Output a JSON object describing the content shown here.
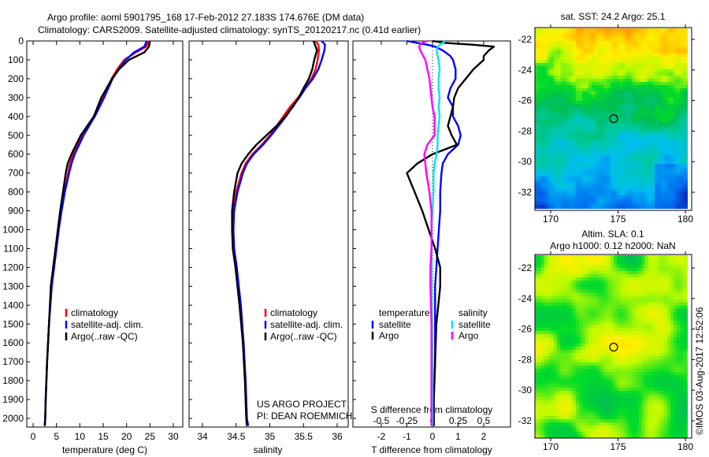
{
  "header": {
    "title_line1": "Argo profile: aoml 5901795_168 17-Feb-2012 27.183S 174.676E (DM data)",
    "title_line2": "Climatology: CARS2009. Satellite-adjusted climatology: synTS_20120217.nc (0.41d earlier)"
  },
  "credits": {
    "project": "US ARGO PROJECT",
    "pi": "PI: DEAN ROEMMICH",
    "copyright": "©IMOS 03-Aug-2017 12:52:06"
  },
  "colors": {
    "climatology": "#ff0000",
    "satellite": "#0000ff",
    "argo": "#000000",
    "salinity_satellite": "#00e5ee",
    "salinity_argo": "#ff00ff"
  },
  "chart_data": [
    {
      "type": "line",
      "title": "",
      "xlabel": "temperature (deg C)",
      "ylabel": "",
      "xlim": [
        -1.35,
        32
      ],
      "ylim": [
        2045,
        0
      ],
      "xticks": [
        "0",
        "5",
        "10",
        "15",
        "20",
        "25",
        "30"
      ],
      "yticks": [
        "0",
        "100",
        "200",
        "300",
        "400",
        "500",
        "600",
        "700",
        "800",
        "900",
        "1000",
        "1100",
        "1200",
        "1300",
        "1400",
        "1500",
        "1600",
        "1700",
        "1800",
        "1900",
        "2000"
      ],
      "legend": [
        "climatology",
        "satellite-adj. clim.",
        "Argo(..raw -QC)"
      ],
      "depth": [
        0,
        30,
        60,
        100,
        150,
        200,
        300,
        400,
        500,
        600,
        650,
        700,
        800,
        900,
        1000,
        1100,
        1200,
        1300,
        1400,
        1500,
        1700,
        1900,
        2000,
        2040
      ],
      "series": [
        {
          "name": "climatology",
          "values": [
            24.8,
            24.2,
            22.0,
            19.5,
            18.0,
            16.8,
            15.0,
            13.0,
            10.5,
            8.6,
            7.9,
            7.5,
            6.7,
            6.0,
            5.4,
            4.9,
            4.4,
            3.9,
            3.6,
            3.4,
            3.0,
            2.7,
            2.6,
            2.5
          ]
        },
        {
          "name": "satellite-adj. clim.",
          "values": [
            24.3,
            23.8,
            21.6,
            19.8,
            18.3,
            17.0,
            15.2,
            13.2,
            10.8,
            8.9,
            8.2,
            7.7,
            6.8,
            6.1,
            5.5,
            5.0,
            4.5,
            4.0,
            3.7,
            3.4,
            3.0,
            2.7,
            2.6,
            2.5
          ]
        },
        {
          "name": "Argo(..raw -QC)",
          "values": [
            25.0,
            24.8,
            23.8,
            20.5,
            18.4,
            16.9,
            14.6,
            13.0,
            10.2,
            8.2,
            7.4,
            7.0,
            6.4,
            5.8,
            5.3,
            4.8,
            4.3,
            3.8,
            3.6,
            3.4,
            3.0,
            2.7,
            2.6,
            2.5
          ]
        }
      ]
    },
    {
      "type": "line",
      "xlabel": "salinity",
      "xlim": [
        33.8,
        36.16
      ],
      "ylim": [
        2045,
        0
      ],
      "xticks": [
        "34",
        "34.5",
        "35",
        "35.5",
        "36"
      ],
      "legend": [
        "climatology",
        "satellite-adj. clim.",
        "Argo(..raw -QC)"
      ],
      "depth": [
        0,
        20,
        50,
        100,
        150,
        200,
        250,
        300,
        350,
        400,
        450,
        500,
        550,
        600,
        650,
        700,
        800,
        900,
        1000,
        1100,
        1200,
        1400,
        1600,
        1800,
        2000,
        2040
      ],
      "series": [
        {
          "name": "climatology",
          "values": [
            35.68,
            35.72,
            35.73,
            35.71,
            35.68,
            35.62,
            35.52,
            35.42,
            35.3,
            35.2,
            35.1,
            35.0,
            34.88,
            34.74,
            34.64,
            34.58,
            34.5,
            34.46,
            34.45,
            34.46,
            34.5,
            34.57,
            34.61,
            34.64,
            34.66,
            34.67
          ]
        },
        {
          "name": "satellite-adj. clim.",
          "values": [
            35.77,
            35.82,
            35.81,
            35.77,
            35.72,
            35.64,
            35.53,
            35.44,
            35.33,
            35.24,
            35.13,
            35.02,
            34.9,
            34.76,
            34.66,
            34.6,
            34.52,
            34.47,
            34.46,
            34.47,
            34.51,
            34.57,
            34.61,
            34.64,
            34.66,
            34.68
          ]
        },
        {
          "name": "Argo(..raw -QC)",
          "values": [
            35.65,
            35.67,
            35.7,
            35.66,
            35.63,
            35.58,
            35.5,
            35.43,
            35.34,
            35.23,
            35.1,
            34.95,
            34.8,
            34.68,
            34.58,
            34.52,
            34.47,
            34.44,
            34.44,
            34.45,
            34.49,
            34.55,
            34.6,
            34.63,
            34.65,
            34.66
          ]
        }
      ]
    },
    {
      "type": "line",
      "xlabel": "T difference from climatology",
      "x2label": "S difference from climatology",
      "xlim": [
        -3.1,
        3.05
      ],
      "x2lim": [
        -0.775,
        0.7625
      ],
      "ylim": [
        2045,
        0
      ],
      "xticks": [
        "-2",
        "-1",
        "0",
        "1",
        "2"
      ],
      "x2ticks": [
        "-0.5",
        "-0.25",
        "0",
        "0.25",
        "0.5"
      ],
      "legend_temperature_title": "temperature",
      "legend_salinity_title": "salinity",
      "legend_satellite": "satellite",
      "legend_argo": "Argo",
      "depth": [
        0,
        10,
        20,
        30,
        50,
        80,
        100,
        150,
        200,
        250,
        300,
        350,
        400,
        450,
        500,
        550,
        600,
        650,
        700,
        800,
        900,
        1000,
        1100,
        1200,
        1300,
        1500,
        1700,
        1900,
        2040
      ],
      "series": [
        {
          "name": "temperature satellite",
          "kind": "T",
          "values": [
            -1.0,
            -0.6,
            -0.2,
            0.1,
            0.4,
            0.7,
            0.8,
            0.9,
            0.9,
            0.7,
            0.6,
            0.8,
            0.8,
            1.0,
            1.1,
            1.0,
            0.6,
            0.4,
            0.35,
            0.3,
            0.3,
            0.25,
            0.2,
            0.15,
            0.1,
            0.1,
            0.1,
            0.05,
            0.05
          ]
        },
        {
          "name": "temperature Argo",
          "kind": "T",
          "values": [
            0.0,
            0.5,
            1.6,
            2.4,
            2.2,
            2.0,
            2.0,
            1.6,
            1.3,
            1.0,
            0.85,
            0.8,
            0.7,
            0.6,
            0.75,
            0.95,
            0.0,
            -0.6,
            -1.0,
            -0.7,
            -0.4,
            -0.15,
            0.1,
            0.3,
            0.3,
            0.15,
            0.1,
            0.05,
            0.05
          ]
        },
        {
          "name": "salinity satellite",
          "kind": "S",
          "values": [
            0.12,
            0.1,
            0.07,
            0.05,
            0.04,
            0.05,
            0.06,
            0.07,
            0.06,
            0.06,
            0.07,
            0.06,
            0.07,
            0.06,
            0.05,
            0.05,
            0.04,
            0.02,
            0.01,
            0.01,
            0.0,
            -0.01,
            -0.01,
            -0.01,
            -0.01,
            -0.005,
            0.0,
            0.0,
            0.0
          ]
        },
        {
          "name": "salinity Argo",
          "kind": "S",
          "values": [
            -0.05,
            -0.1,
            -0.12,
            -0.13,
            -0.12,
            -0.09,
            -0.07,
            -0.05,
            -0.03,
            -0.02,
            -0.01,
            0.0,
            0.02,
            0.02,
            0.02,
            -0.05,
            -0.08,
            -0.07,
            -0.06,
            -0.03,
            -0.01,
            -0.01,
            -0.01,
            -0.02,
            -0.02,
            -0.01,
            -0.01,
            -0.01,
            -0.01
          ]
        }
      ]
    },
    {
      "type": "heatmap",
      "title": "sat. SST: 24.2 Argo: 25.1",
      "xlim": [
        168.8,
        180.5
      ],
      "ylim": [
        -33.1,
        -21.2
      ],
      "xticks": [
        "170",
        "175",
        "180"
      ],
      "yticks": [
        "-22",
        "-24",
        "-26",
        "-28",
        "-30",
        "-32"
      ],
      "float_position": {
        "lon": 174.676,
        "lat": -27.183
      }
    },
    {
      "type": "heatmap",
      "title_line1": "Altim. SLA: 0.1",
      "title_line2": "Argo h1000: 0.12 h2000: NaN",
      "xlim": [
        168.8,
        180.5
      ],
      "ylim": [
        -33.1,
        -21.2
      ],
      "xticks": [
        "170",
        "175",
        "180"
      ],
      "yticks": [
        "-22",
        "-24",
        "-26",
        "-28",
        "-30",
        "-32"
      ],
      "float_position": {
        "lon": 174.676,
        "lat": -27.183
      }
    }
  ]
}
